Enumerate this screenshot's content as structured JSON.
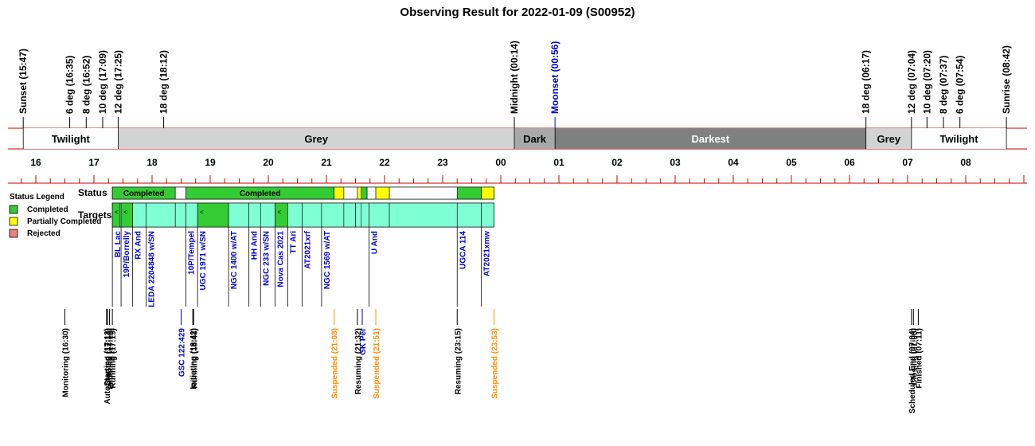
{
  "title": "Observing Result for 2022-01-09 (S00952)",
  "legend": {
    "title": "Status Legend",
    "items": [
      {
        "label": "Completed",
        "color": "#33cc33"
      },
      {
        "label": "Partially Completed",
        "color": "#ffff00"
      },
      {
        "label": "Rejected",
        "color": "#f08080"
      }
    ]
  },
  "row_labels": {
    "status": "Status",
    "targets": "Targets"
  },
  "colors": {
    "twilight": "#ffffff",
    "grey": "#d3d3d3",
    "dark": "#a9a9a9",
    "darkest": "#808080",
    "target": "#7fffd4",
    "completed": "#33cc33",
    "partial": "#ffff00",
    "blue_text": "#0000cd",
    "orange_text": "#ff8c00",
    "axis_red": "#cc0000"
  },
  "chart_data": {
    "type": "timeline",
    "time_range": [
      "15:47",
      "08:42"
    ],
    "hour_labels": [
      "16",
      "17",
      "18",
      "19",
      "20",
      "21",
      "22",
      "23",
      "00",
      "01",
      "02",
      "03",
      "04",
      "05",
      "06",
      "07",
      "08"
    ],
    "top_events": [
      {
        "time": "15:47",
        "label": "Sunset (15:47)",
        "color": "black"
      },
      {
        "time": "16:35",
        "label": "6 deg (16:35)",
        "color": "black"
      },
      {
        "time": "16:52",
        "label": "8 deg (16:52)",
        "color": "black"
      },
      {
        "time": "17:09",
        "label": "10 deg (17:09)",
        "color": "black"
      },
      {
        "time": "17:25",
        "label": "12 deg (17:25)",
        "color": "black"
      },
      {
        "time": "18:12",
        "label": "18 deg (18:12)",
        "color": "black"
      },
      {
        "time": "00:14",
        "label": "Midnight (00:14)",
        "color": "black"
      },
      {
        "time": "00:56",
        "label": "Moonset (00:56)",
        "color": "blue"
      },
      {
        "time": "06:17",
        "label": "18 deg (06:17)",
        "color": "black"
      },
      {
        "time": "07:04",
        "label": "12 deg (07:04)",
        "color": "black"
      },
      {
        "time": "07:20",
        "label": "10 deg (07:20)",
        "color": "black"
      },
      {
        "time": "07:37",
        "label": "8 deg (07:37)",
        "color": "black"
      },
      {
        "time": "07:54",
        "label": "6 deg (07:54)",
        "color": "black"
      },
      {
        "time": "08:42",
        "label": "Sunrise (08:42)",
        "color": "black"
      }
    ],
    "sky_bands": [
      {
        "start": "15:47",
        "end": "17:25",
        "label": "Twilight",
        "kind": "twilight"
      },
      {
        "start": "17:25",
        "end": "00:14",
        "label": "Grey",
        "kind": "grey"
      },
      {
        "start": "00:14",
        "end": "00:56",
        "label": "Dark",
        "kind": "dark"
      },
      {
        "start": "00:56",
        "end": "06:17",
        "label": "Darkest",
        "kind": "darkest"
      },
      {
        "start": "06:17",
        "end": "07:04",
        "label": "Grey",
        "kind": "grey"
      },
      {
        "start": "07:04",
        "end": "08:42",
        "label": "Twilight",
        "kind": "twilight"
      }
    ],
    "status_bars": [
      {
        "start": "17:19",
        "end": "18:24",
        "status": "completed",
        "label": "Completed"
      },
      {
        "start": "18:24",
        "end": "18:35",
        "status": "none",
        "label": ""
      },
      {
        "start": "18:35",
        "end": "21:08",
        "status": "completed",
        "label": "Completed"
      },
      {
        "start": "21:08",
        "end": "21:18",
        "status": "partial",
        "label": ""
      },
      {
        "start": "21:18",
        "end": "21:32",
        "status": "none",
        "label": ""
      },
      {
        "start": "21:32",
        "end": "21:36",
        "status": "partial",
        "label": ""
      },
      {
        "start": "21:36",
        "end": "21:42",
        "status": "completed",
        "label": ""
      },
      {
        "start": "21:42",
        "end": "21:51",
        "status": "none",
        "label": ""
      },
      {
        "start": "21:51",
        "end": "22:05",
        "status": "partial",
        "label": ""
      },
      {
        "start": "22:05",
        "end": "23:15",
        "status": "none",
        "label": ""
      },
      {
        "start": "23:15",
        "end": "23:40",
        "status": "completed",
        "label": ""
      },
      {
        "start": "23:40",
        "end": "23:53",
        "status": "partial",
        "label": ""
      }
    ],
    "targets": [
      {
        "start": "17:19",
        "end": "17:27",
        "label": "BL Lac",
        "completed": true
      },
      {
        "start": "17:28",
        "end": "17:40",
        "label": "19P/Borrelly",
        "completed": true
      },
      {
        "start": "17:40",
        "end": "17:54",
        "label": "RX And",
        "completed": false
      },
      {
        "start": "17:54",
        "end": "18:24",
        "label": "LEDA 2204848 w/SN",
        "completed": false
      },
      {
        "start": "18:24",
        "end": "18:35",
        "label": "",
        "completed": false
      },
      {
        "start": "18:35",
        "end": "18:47",
        "label": "10P/Tempel",
        "completed": false
      },
      {
        "start": "18:47",
        "end": "19:19",
        "label": "UGC 1971 w/SN",
        "completed": true
      },
      {
        "start": "19:19",
        "end": "19:40",
        "label": "NGC 1400 w/AT",
        "completed": false
      },
      {
        "start": "19:40",
        "end": "19:52",
        "label": "HH And",
        "completed": false
      },
      {
        "start": "19:52",
        "end": "20:07",
        "label": "NGC 233  w/SN",
        "completed": false
      },
      {
        "start": "20:07",
        "end": "20:20",
        "label": "Nova Cas 2021",
        "completed": true
      },
      {
        "start": "20:20",
        "end": "20:35",
        "label": "TT Ari",
        "completed": false
      },
      {
        "start": "20:35",
        "end": "20:55",
        "label": "AT2021xrf",
        "completed": false
      },
      {
        "start": "20:55",
        "end": "21:18",
        "label": "NGC 1569 w/AT",
        "completed": false
      },
      {
        "start": "21:18",
        "end": "21:30",
        "label": "",
        "completed": false
      },
      {
        "start": "21:30",
        "end": "21:36",
        "label": "",
        "completed": false
      },
      {
        "start": "21:36",
        "end": "21:44",
        "label": "",
        "completed": false
      },
      {
        "start": "21:44",
        "end": "22:05",
        "label": "U And",
        "completed": false
      },
      {
        "start": "22:05",
        "end": "23:15",
        "label": "",
        "completed": false
      },
      {
        "start": "23:15",
        "end": "23:40",
        "label": "UGCA 114",
        "completed": false
      },
      {
        "start": "23:40",
        "end": "23:53",
        "label": "AT2021xmw",
        "completed": false
      }
    ],
    "bottom_events": [
      {
        "time": "16:30",
        "label": "Monitoring (16:30)",
        "color": "black"
      },
      {
        "time": "17:13",
        "label": "AutoStarting (17:13)",
        "color": "black"
      },
      {
        "time": "17:14",
        "label": "Created (17:14)",
        "color": "black"
      },
      {
        "time": "17:16",
        "label": "Initiating (17:16)",
        "color": "black"
      },
      {
        "time": "17:19",
        "label": "Running (17:19)",
        "color": "black"
      },
      {
        "time": "18:30",
        "label": "GSC 122:429",
        "color": "blue"
      },
      {
        "time": "18:42",
        "label": "Initiating (18:42)",
        "color": "black"
      },
      {
        "time": "18:43",
        "label": "Running (18:43)",
        "color": "black"
      },
      {
        "time": "21:08",
        "label": "Suspended (21:08)",
        "color": "orange"
      },
      {
        "time": "21:32",
        "label": "Resuming (21:32)",
        "color": "black"
      },
      {
        "time": "21:37",
        "label": "GK Per",
        "color": "blue"
      },
      {
        "time": "21:51",
        "label": "Suspended (21:51)",
        "color": "orange"
      },
      {
        "time": "23:15",
        "label": "Resuming (23:15)",
        "color": "black"
      },
      {
        "time": "23:53",
        "label": "Suspended (23:53)",
        "color": "orange"
      },
      {
        "time": "07:04",
        "label": "Scheduled End (07:04)",
        "color": "black"
      },
      {
        "time": "07:06",
        "label": "Closing (07:06)",
        "color": "black"
      },
      {
        "time": "07:11",
        "label": "Finished (07:11)",
        "color": "black"
      }
    ]
  }
}
